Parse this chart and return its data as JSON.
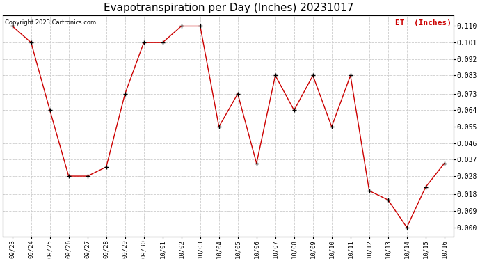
{
  "title": "Evapotranspiration per Day (Inches) 20231017",
  "legend_label": "ET  (Inches)",
  "copyright_text": "Copyright 2023 Cartronics.com",
  "x_labels": [
    "09/23",
    "09/24",
    "09/25",
    "09/26",
    "09/27",
    "09/28",
    "09/29",
    "09/30",
    "10/01",
    "10/02",
    "10/03",
    "10/04",
    "10/05",
    "10/06",
    "10/07",
    "10/08",
    "10/09",
    "10/10",
    "10/11",
    "10/12",
    "10/13",
    "10/14",
    "10/15",
    "10/16"
  ],
  "y_values": [
    0.11,
    0.101,
    0.064,
    0.028,
    0.028,
    0.033,
    0.073,
    0.101,
    0.101,
    0.11,
    0.11,
    0.055,
    0.073,
    0.035,
    0.083,
    0.064,
    0.083,
    0.055,
    0.083,
    0.02,
    0.015,
    0.0,
    0.022,
    0.035
  ],
  "y_ticks": [
    0.0,
    0.009,
    0.018,
    0.028,
    0.037,
    0.046,
    0.055,
    0.064,
    0.073,
    0.083,
    0.092,
    0.101,
    0.11
  ],
  "line_color": "#cc0000",
  "marker_color": "#000000",
  "grid_color": "#cccccc",
  "background_color": "#ffffff",
  "title_fontsize": 11,
  "legend_color": "#cc0000",
  "copyright_color": "#000000"
}
